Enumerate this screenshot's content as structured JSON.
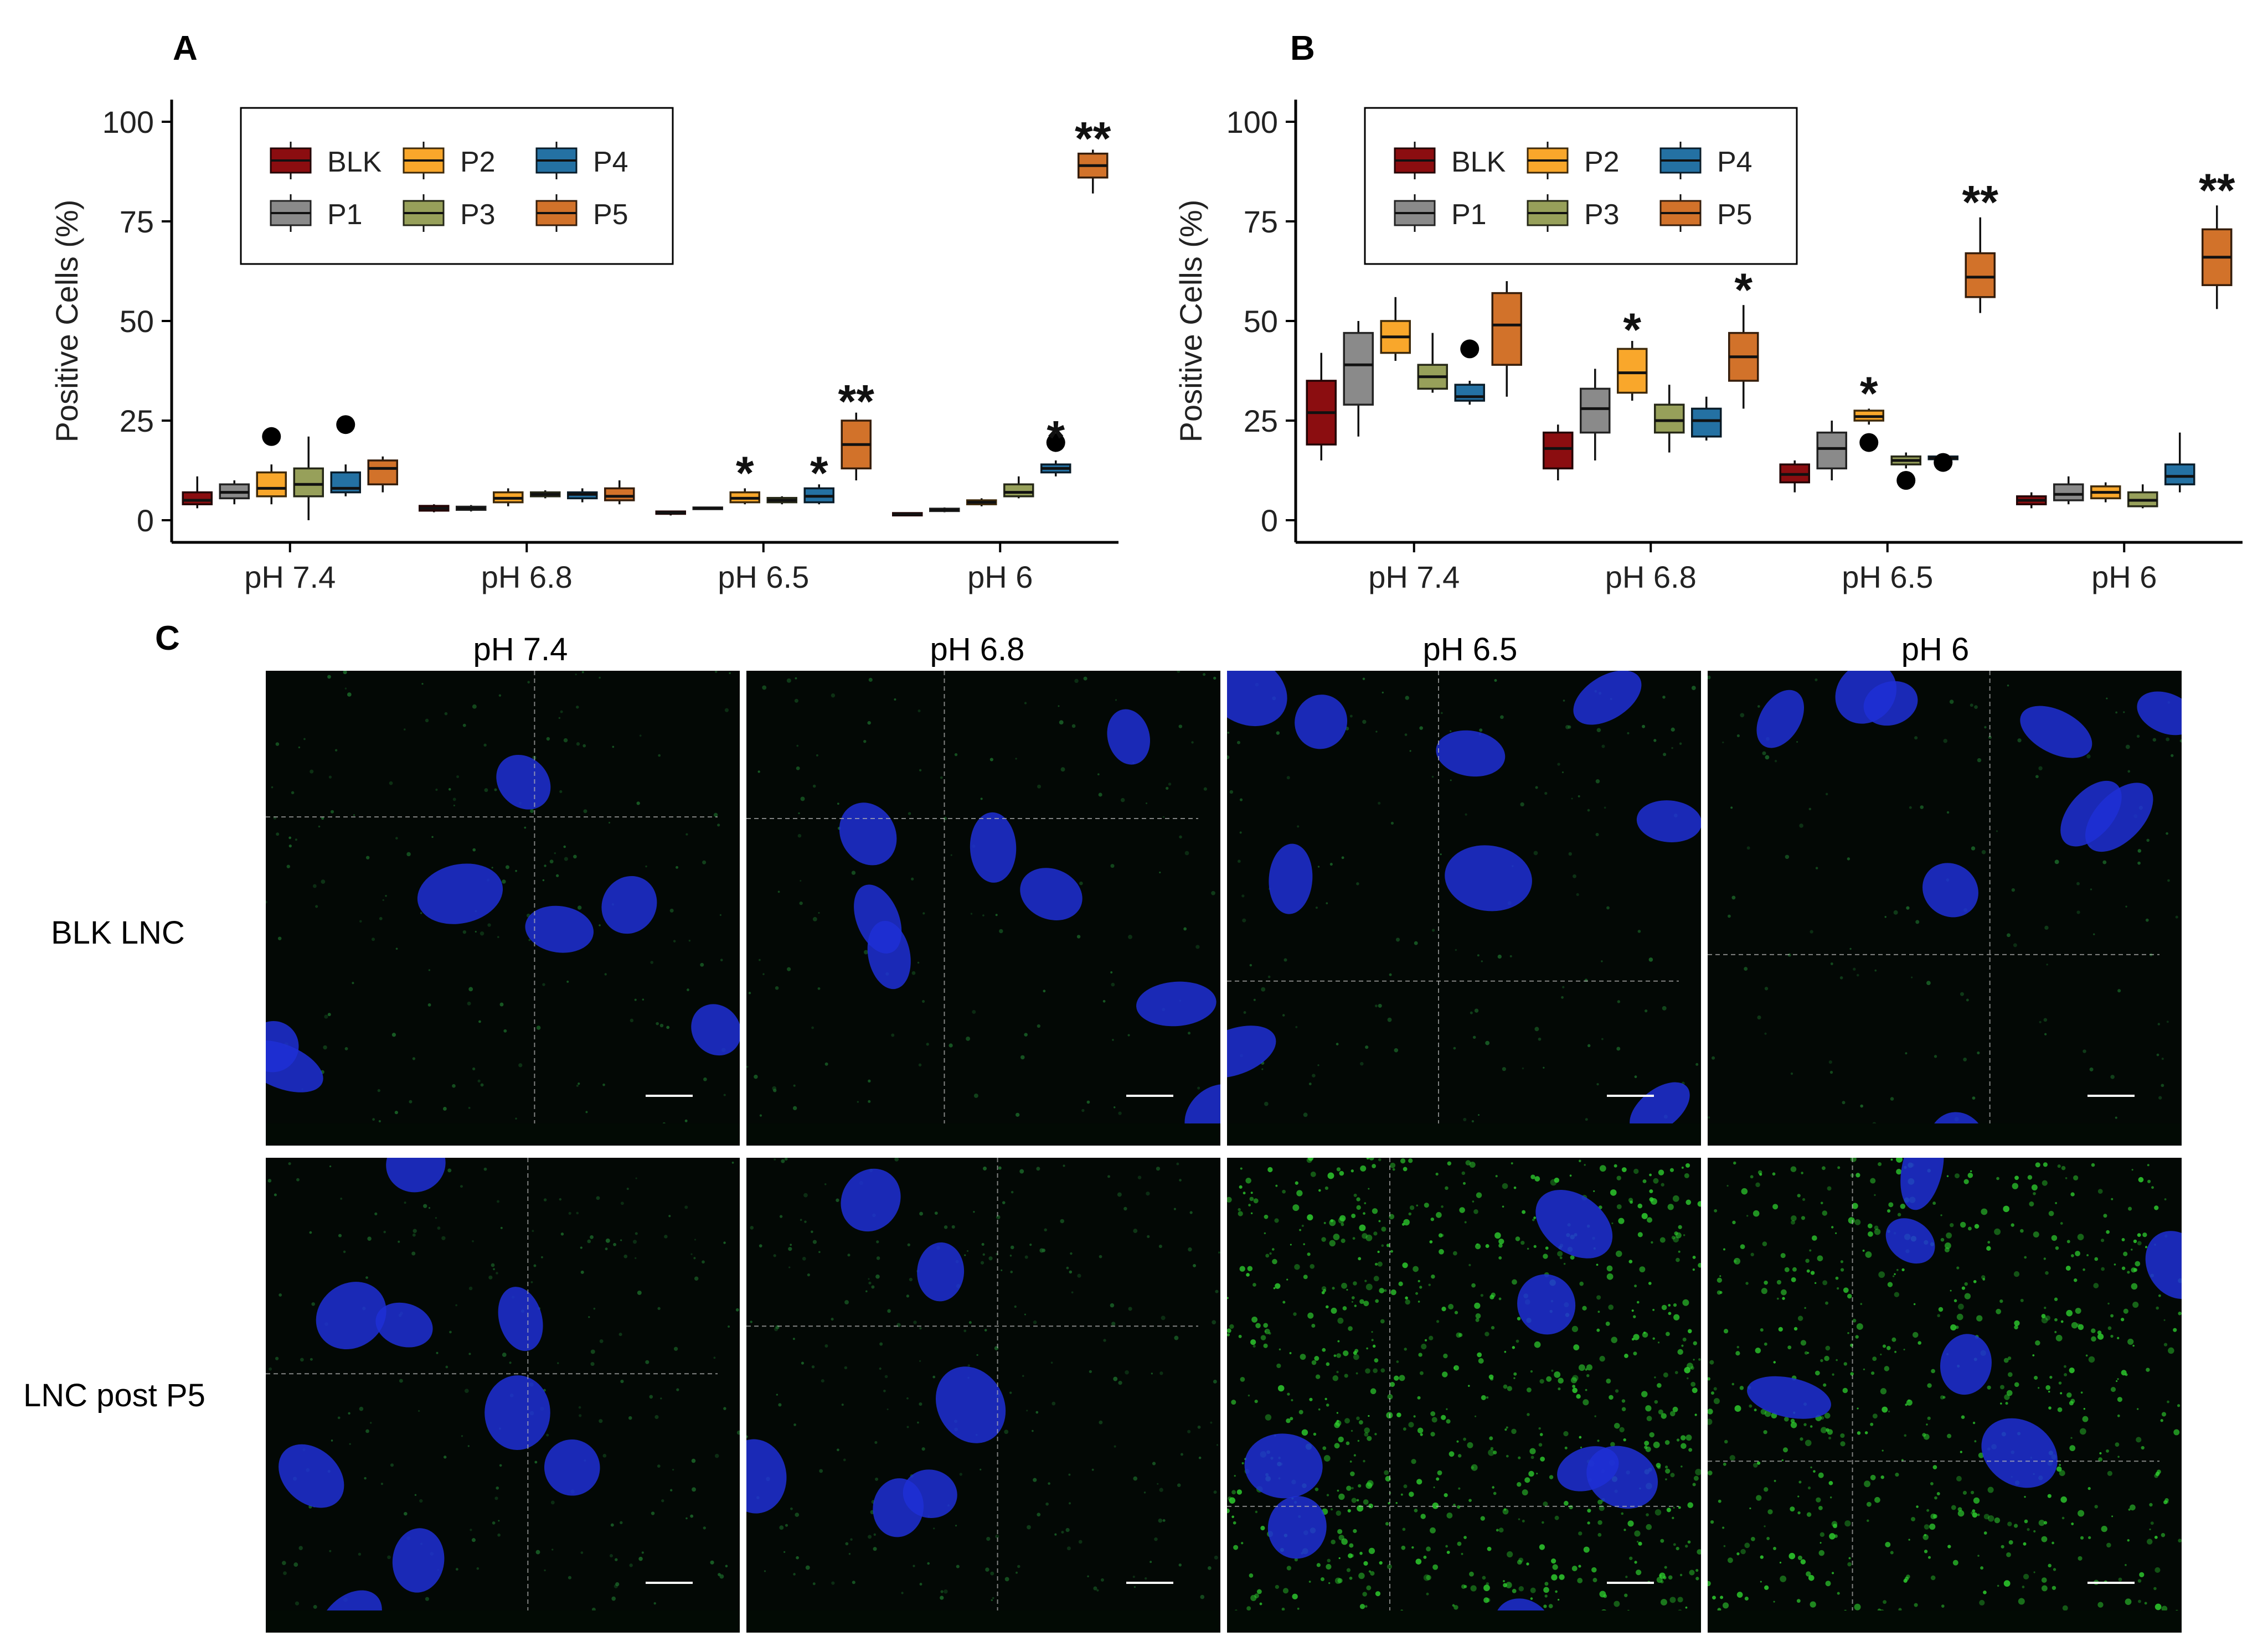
{
  "figure": {
    "panel_labels": [
      "A",
      "B",
      "C"
    ]
  },
  "legend": {
    "items": [
      {
        "key": "BLK",
        "color": "#8B0D10"
      },
      {
        "key": "P1",
        "color": "#8A8A8A"
      },
      {
        "key": "P2",
        "color": "#F9A72B"
      },
      {
        "key": "P3",
        "color": "#97A05A"
      },
      {
        "key": "P4",
        "color": "#2471A3"
      },
      {
        "key": "P5",
        "color": "#D2722A"
      }
    ]
  },
  "chart_data": [
    {
      "panel": "A",
      "type": "box",
      "ylabel": "Positive Cells (%)",
      "ylim": [
        0,
        100
      ],
      "yticks": [
        0,
        25,
        50,
        75,
        100
      ],
      "categories": [
        "pH 7.4",
        "pH 6.8",
        "pH 6.5",
        "pH 6"
      ],
      "groups": [
        "BLK",
        "P1",
        "P2",
        "P3",
        "P4",
        "P5"
      ],
      "boxes": [
        {
          "cat": "pH 7.4",
          "group": "BLK",
          "min": 3,
          "q1": 4,
          "median": 5,
          "q3": 7,
          "max": 11
        },
        {
          "cat": "pH 7.4",
          "group": "P1",
          "min": 4,
          "q1": 5.5,
          "median": 7,
          "q3": 9,
          "max": 10
        },
        {
          "cat": "pH 7.4",
          "group": "P2",
          "min": 4,
          "q1": 6,
          "median": 8,
          "q3": 12,
          "max": 14,
          "outliers": [
            21
          ]
        },
        {
          "cat": "pH 7.4",
          "group": "P3",
          "min": 0,
          "q1": 6,
          "median": 9,
          "q3": 13,
          "max": 21
        },
        {
          "cat": "pH 7.4",
          "group": "P4",
          "min": 6,
          "q1": 7,
          "median": 8,
          "q3": 12,
          "max": 14,
          "outliers": [
            24
          ]
        },
        {
          "cat": "pH 7.4",
          "group": "P5",
          "min": 7,
          "q1": 9,
          "median": 13,
          "q3": 15,
          "max": 16
        },
        {
          "cat": "pH 6.8",
          "group": "BLK",
          "min": 2,
          "q1": 2.4,
          "median": 3,
          "q3": 3.6,
          "max": 4
        },
        {
          "cat": "pH 6.8",
          "group": "P1",
          "min": 2.2,
          "q1": 2.6,
          "median": 3,
          "q3": 3.4,
          "max": 3.8
        },
        {
          "cat": "pH 6.8",
          "group": "P2",
          "min": 3.5,
          "q1": 4.5,
          "median": 5.5,
          "q3": 7,
          "max": 8
        },
        {
          "cat": "pH 6.8",
          "group": "P3",
          "min": 5.5,
          "q1": 6,
          "median": 6.5,
          "q3": 7,
          "max": 7.5
        },
        {
          "cat": "pH 6.8",
          "group": "P4",
          "min": 4.5,
          "q1": 5.5,
          "median": 6.5,
          "q3": 7,
          "max": 8
        },
        {
          "cat": "pH 6.8",
          "group": "P5",
          "min": 4,
          "q1": 5,
          "median": 6,
          "q3": 8,
          "max": 10
        },
        {
          "cat": "pH 6.5",
          "group": "BLK",
          "min": 1.2,
          "q1": 1.6,
          "median": 1.9,
          "q3": 2.2,
          "max": 2.4
        },
        {
          "cat": "pH 6.5",
          "group": "P1",
          "min": 2.6,
          "q1": 2.8,
          "median": 3,
          "q3": 3.2,
          "max": 3.4
        },
        {
          "cat": "pH 6.5",
          "group": "P2",
          "min": 4,
          "q1": 4.5,
          "median": 5.5,
          "q3": 7,
          "max": 8
        },
        {
          "cat": "pH 6.5",
          "group": "P3",
          "min": 4,
          "q1": 4.5,
          "median": 5,
          "q3": 5.6,
          "max": 6
        },
        {
          "cat": "pH 6.5",
          "group": "P4",
          "min": 4,
          "q1": 4.5,
          "median": 6,
          "q3": 8,
          "max": 9
        },
        {
          "cat": "pH 6.5",
          "group": "P5",
          "min": 10,
          "q1": 13,
          "median": 19,
          "q3": 25,
          "max": 27
        },
        {
          "cat": "pH 6",
          "group": "BLK",
          "min": 1,
          "q1": 1.2,
          "median": 1.5,
          "q3": 1.8,
          "max": 2
        },
        {
          "cat": "pH 6",
          "group": "P1",
          "min": 2,
          "q1": 2.3,
          "median": 2.6,
          "q3": 2.9,
          "max": 3.2
        },
        {
          "cat": "pH 6",
          "group": "P2",
          "min": 3.5,
          "q1": 4,
          "median": 4.5,
          "q3": 5,
          "max": 5.5
        },
        {
          "cat": "pH 6",
          "group": "P3",
          "min": 5.5,
          "q1": 6,
          "median": 7,
          "q3": 9,
          "max": 11
        },
        {
          "cat": "pH 6",
          "group": "P4",
          "min": 11,
          "q1": 12,
          "median": 13,
          "q3": 14,
          "max": 15,
          "outliers": [
            19.5
          ]
        },
        {
          "cat": "pH 6",
          "group": "P5",
          "min": 82,
          "q1": 86,
          "median": 89,
          "q3": 92,
          "max": 93
        }
      ],
      "annotations": [
        {
          "cat": "pH 6.5",
          "group": "P2",
          "text": "*",
          "y": 12
        },
        {
          "cat": "pH 6.5",
          "group": "P4",
          "text": "*",
          "y": 12
        },
        {
          "cat": "pH 6.5",
          "group": "P5",
          "text": "**",
          "y": 30
        },
        {
          "cat": "pH 6",
          "group": "P4",
          "text": "*",
          "y": 21
        },
        {
          "cat": "pH 6",
          "group": "P5",
          "text": "**",
          "y": 96
        }
      ]
    },
    {
      "panel": "B",
      "type": "box",
      "ylabel": "Positive Cells (%)",
      "ylim": [
        0,
        100
      ],
      "yticks": [
        0,
        25,
        50,
        75,
        100
      ],
      "categories": [
        "pH 7.4",
        "pH 6.8",
        "pH 6.5",
        "pH 6"
      ],
      "groups": [
        "BLK",
        "P1",
        "P2",
        "P3",
        "P4",
        "P5"
      ],
      "boxes": [
        {
          "cat": "pH 7.4",
          "group": "BLK",
          "min": 15,
          "q1": 19,
          "median": 27,
          "q3": 35,
          "max": 42
        },
        {
          "cat": "pH 7.4",
          "group": "P1",
          "min": 21,
          "q1": 29,
          "median": 39,
          "q3": 47,
          "max": 50
        },
        {
          "cat": "pH 7.4",
          "group": "P2",
          "min": 40,
          "q1": 42,
          "median": 46,
          "q3": 50,
          "max": 56
        },
        {
          "cat": "pH 7.4",
          "group": "P3",
          "min": 32,
          "q1": 33,
          "median": 36,
          "q3": 39,
          "max": 47
        },
        {
          "cat": "pH 7.4",
          "group": "P4",
          "min": 29,
          "q1": 30,
          "median": 31,
          "q3": 34,
          "max": 35,
          "outliers": [
            43
          ]
        },
        {
          "cat": "pH 7.4",
          "group": "P5",
          "min": 31,
          "q1": 39,
          "median": 49,
          "q3": 57,
          "max": 60
        },
        {
          "cat": "pH 6.8",
          "group": "BLK",
          "min": 10,
          "q1": 13,
          "median": 18,
          "q3": 22,
          "max": 24
        },
        {
          "cat": "pH 6.8",
          "group": "P1",
          "min": 15,
          "q1": 22,
          "median": 28,
          "q3": 33,
          "max": 38
        },
        {
          "cat": "pH 6.8",
          "group": "P2",
          "min": 30,
          "q1": 32,
          "median": 37,
          "q3": 43,
          "max": 45
        },
        {
          "cat": "pH 6.8",
          "group": "P3",
          "min": 17,
          "q1": 22,
          "median": 25,
          "q3": 29,
          "max": 34
        },
        {
          "cat": "pH 6.8",
          "group": "P4",
          "min": 20,
          "q1": 21,
          "median": 25,
          "q3": 28,
          "max": 31
        },
        {
          "cat": "pH 6.8",
          "group": "P5",
          "min": 28,
          "q1": 35,
          "median": 41,
          "q3": 47,
          "max": 54
        },
        {
          "cat": "pH 6.5",
          "group": "BLK",
          "min": 7,
          "q1": 9.5,
          "median": 11.5,
          "q3": 14,
          "max": 15
        },
        {
          "cat": "pH 6.5",
          "group": "P1",
          "min": 10,
          "q1": 13,
          "median": 18,
          "q3": 22,
          "max": 25
        },
        {
          "cat": "pH 6.5",
          "group": "P2",
          "min": 24,
          "q1": 25,
          "median": 26,
          "q3": 27.5,
          "max": 28,
          "outliers": [
            19.5
          ]
        },
        {
          "cat": "pH 6.5",
          "group": "P3",
          "min": 13,
          "q1": 14,
          "median": 15,
          "q3": 16,
          "max": 17,
          "outliers": [
            10
          ]
        },
        {
          "cat": "pH 6.5",
          "group": "P4",
          "min": 15,
          "q1": 15.3,
          "median": 15.6,
          "q3": 16,
          "max": 16.3,
          "outliers": [
            14.5
          ]
        },
        {
          "cat": "pH 6.5",
          "group": "P5",
          "min": 52,
          "q1": 56,
          "median": 61,
          "q3": 67,
          "max": 76
        },
        {
          "cat": "pH 6",
          "group": "BLK",
          "min": 3,
          "q1": 4,
          "median": 5,
          "q3": 6,
          "max": 7
        },
        {
          "cat": "pH 6",
          "group": "P1",
          "min": 4,
          "q1": 5,
          "median": 6.5,
          "q3": 9,
          "max": 11
        },
        {
          "cat": "pH 6",
          "group": "P2",
          "min": 4.5,
          "q1": 5.5,
          "median": 7,
          "q3": 8.5,
          "max": 9.5
        },
        {
          "cat": "pH 6",
          "group": "P3",
          "min": 3,
          "q1": 3.5,
          "median": 5,
          "q3": 7,
          "max": 9
        },
        {
          "cat": "pH 6",
          "group": "P4",
          "min": 7,
          "q1": 9,
          "median": 11,
          "q3": 14,
          "max": 22
        },
        {
          "cat": "pH 6",
          "group": "P5",
          "min": 53,
          "q1": 59,
          "median": 66,
          "q3": 73,
          "max": 79
        }
      ],
      "annotations": [
        {
          "cat": "pH 6.8",
          "group": "P2",
          "text": "*",
          "y": 48
        },
        {
          "cat": "pH 6.8",
          "group": "P5",
          "text": "*",
          "y": 58
        },
        {
          "cat": "pH 6.5",
          "group": "P2",
          "text": "*",
          "y": 32
        },
        {
          "cat": "pH 6.5",
          "group": "P5",
          "text": "**",
          "y": 80
        },
        {
          "cat": "pH 6",
          "group": "P5",
          "text": "**",
          "y": 83
        }
      ]
    }
  ],
  "micrographs": {
    "columns": [
      "pH 7.4",
      "pH 6.8",
      "pH 6.5",
      "pH 6"
    ],
    "rows": [
      "BLK LNC",
      "LNC post P5"
    ],
    "green_signal": [
      [
        0.15,
        0.1,
        0.12,
        0.1
      ],
      [
        0.2,
        0.25,
        0.9,
        0.7
      ]
    ]
  }
}
